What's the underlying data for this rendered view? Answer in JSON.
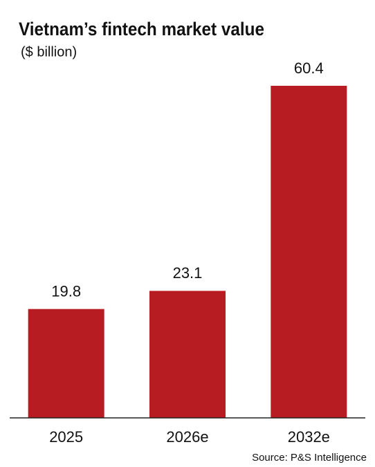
{
  "chart_data": {
    "type": "bar",
    "title": "Vietnam’s fintech market value",
    "subtitle": "($ billion)",
    "categories": [
      "2025",
      "2026e",
      "2032e"
    ],
    "values": [
      19.8,
      23.1,
      60.4
    ],
    "color": "#b71c23",
    "ylim": [
      0,
      60.4
    ],
    "source": "Source: P&S Intelligence"
  }
}
